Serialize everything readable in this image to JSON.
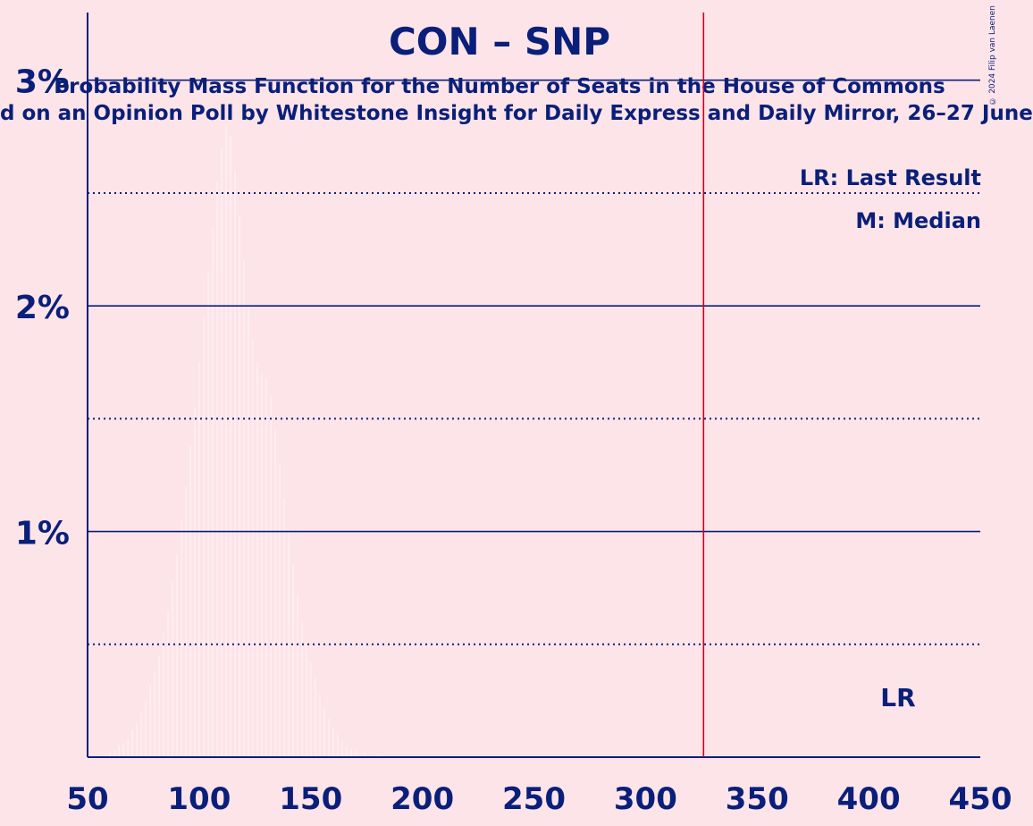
{
  "title": "CON – SNP",
  "subtitle": "Probability Mass Function for the Number of Seats in the House of Commons",
  "subtitle2": "d on an Opinion Poll by Whitestone Insight for Daily Express and Daily Mirror, 26–27 June",
  "copyright": "© 2024 Filip van Laenen",
  "legend": {
    "lr": "LR: Last Result",
    "median": "M: Median"
  },
  "colors": {
    "background": "#fde4e8",
    "axis": "#0a1f7a",
    "last_result_line": "#cc0022"
  },
  "chart_data": {
    "type": "bar",
    "title": "CON – SNP",
    "xlabel": "",
    "ylabel": "",
    "xlim": [
      50,
      450
    ],
    "ylim": [
      0,
      3.3
    ],
    "x_ticks": [
      50,
      100,
      150,
      200,
      250,
      300,
      350,
      400,
      450
    ],
    "x_tick_labels": [
      "50",
      "100",
      "150",
      "200",
      "250",
      "300",
      "350",
      "400",
      "450"
    ],
    "y_ticks": [
      1,
      2,
      3
    ],
    "y_tick_labels": [
      "1%",
      "2%",
      "3%"
    ],
    "y_minor_gridlines": [
      0.5,
      1.5,
      2.5
    ],
    "last_result": {
      "seats": 326,
      "label": "LR"
    },
    "series": [
      {
        "values": [
          [
            58,
            0.01
          ],
          [
            60,
            0.02
          ],
          [
            62,
            0.03
          ],
          [
            64,
            0.05
          ],
          [
            66,
            0.06
          ],
          [
            68,
            0.08
          ],
          [
            70,
            0.12
          ],
          [
            72,
            0.15
          ],
          [
            74,
            0.2
          ],
          [
            76,
            0.25
          ],
          [
            78,
            0.32
          ],
          [
            80,
            0.38
          ],
          [
            82,
            0.45
          ],
          [
            84,
            0.55
          ],
          [
            86,
            0.65
          ],
          [
            88,
            0.78
          ],
          [
            90,
            0.9
          ],
          [
            92,
            1.05
          ],
          [
            94,
            1.2
          ],
          [
            96,
            1.38
          ],
          [
            98,
            1.55
          ],
          [
            100,
            1.75
          ],
          [
            102,
            1.95
          ],
          [
            104,
            2.15
          ],
          [
            106,
            2.35
          ],
          [
            108,
            2.55
          ],
          [
            110,
            2.7
          ],
          [
            112,
            2.8
          ],
          [
            114,
            2.75
          ],
          [
            116,
            2.6
          ],
          [
            118,
            2.4
          ],
          [
            120,
            2.2
          ],
          [
            122,
            2.0
          ],
          [
            124,
            1.85
          ],
          [
            126,
            1.75
          ],
          [
            128,
            1.7
          ],
          [
            130,
            1.68
          ],
          [
            132,
            1.6
          ],
          [
            134,
            1.45
          ],
          [
            136,
            1.3
          ],
          [
            138,
            1.15
          ],
          [
            140,
            1.0
          ],
          [
            142,
            0.85
          ],
          [
            144,
            0.72
          ],
          [
            146,
            0.6
          ],
          [
            148,
            0.5
          ],
          [
            150,
            0.42
          ],
          [
            152,
            0.35
          ],
          [
            154,
            0.28
          ],
          [
            156,
            0.22
          ],
          [
            158,
            0.17
          ],
          [
            160,
            0.13
          ],
          [
            162,
            0.1
          ],
          [
            164,
            0.07
          ],
          [
            166,
            0.05
          ],
          [
            168,
            0.04
          ],
          [
            170,
            0.03
          ],
          [
            174,
            0.02
          ],
          [
            180,
            0.01
          ],
          [
            190,
            0.005
          ]
        ]
      }
    ]
  }
}
